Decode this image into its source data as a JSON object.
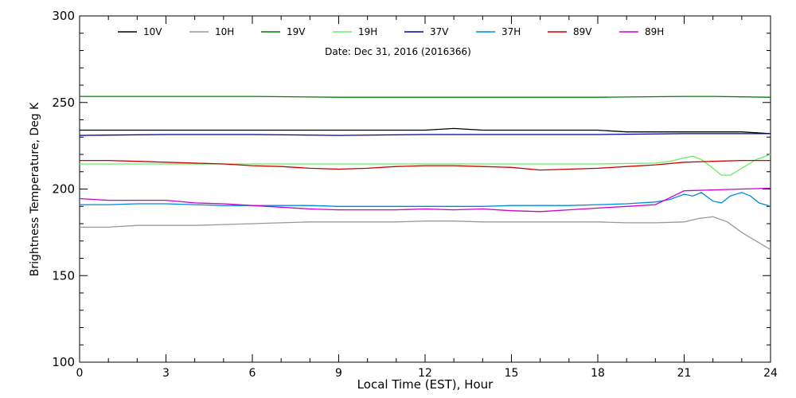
{
  "chart_data": {
    "type": "line",
    "title": "",
    "subtitle": "Date: Dec 31, 2016 (2016366)",
    "xlabel": "Local Time (EST), Hour",
    "ylabel": "Brightness Temperature, Deg K",
    "xlim": [
      0,
      24
    ],
    "ylim": [
      100,
      300
    ],
    "xticks": [
      0,
      3,
      6,
      9,
      12,
      15,
      18,
      21,
      24
    ],
    "yticks": [
      100,
      150,
      200,
      250,
      300
    ],
    "grid": false,
    "legend_position": "top",
    "series": [
      {
        "name": "10V",
        "color": "#000000",
        "x": [
          0,
          1,
          2,
          3,
          4,
          5,
          6,
          7,
          8,
          9,
          10,
          11,
          12,
          13,
          14,
          15,
          16,
          17,
          18,
          19,
          20,
          21,
          22,
          23,
          24
        ],
        "y": [
          234,
          234,
          234,
          234,
          234,
          234,
          234,
          234,
          234,
          234,
          234,
          234,
          234,
          235,
          234,
          234,
          234,
          234,
          234,
          233,
          233,
          233,
          233,
          233,
          232
        ]
      },
      {
        "name": "10H",
        "color": "#999999",
        "x": [
          0,
          1,
          2,
          3,
          4,
          5,
          6,
          7,
          8,
          9,
          10,
          11,
          12,
          13,
          14,
          15,
          16,
          17,
          18,
          19,
          20,
          21,
          21.5,
          22,
          22.5,
          23,
          23.5,
          24
        ],
        "y": [
          178,
          178,
          179,
          179,
          179,
          179.5,
          180,
          180.5,
          181,
          181,
          181,
          181,
          181.5,
          181.5,
          181,
          181,
          181,
          181,
          181,
          180.5,
          180.5,
          181,
          183,
          184,
          181,
          175,
          170,
          165
        ]
      },
      {
        "name": "19V",
        "color": "#008000",
        "x": [
          0,
          3,
          6,
          9,
          12,
          15,
          18,
          21,
          22,
          24
        ],
        "y": [
          253.5,
          253.5,
          253.5,
          253,
          253,
          253,
          253,
          253.5,
          253.5,
          253
        ]
      },
      {
        "name": "19H",
        "color": "#66ee66",
        "x": [
          0,
          3,
          6,
          9,
          12,
          15,
          18,
          20,
          20.5,
          21,
          21.3,
          21.6,
          22,
          22.3,
          22.6,
          23,
          23.5,
          24
        ],
        "y": [
          214.5,
          214.5,
          214.5,
          214.5,
          214.5,
          214.5,
          214.5,
          215,
          216,
          218,
          219,
          217,
          212,
          208,
          208,
          212,
          217,
          220
        ]
      },
      {
        "name": "37V",
        "color": "#0000aa",
        "x": [
          0,
          3,
          6,
          9,
          12,
          15,
          18,
          21,
          24
        ],
        "y": [
          231,
          231.5,
          231.5,
          231,
          231.5,
          231.5,
          231.5,
          232,
          232
        ]
      },
      {
        "name": "37H",
        "color": "#0088dd",
        "x": [
          0,
          1,
          2,
          3,
          4,
          5,
          6,
          7,
          8,
          9,
          10,
          11,
          12,
          13,
          14,
          15,
          16,
          17,
          18,
          19,
          20,
          20.5,
          21,
          21.3,
          21.6,
          22,
          22.3,
          22.6,
          23,
          23.3,
          23.6,
          24
        ],
        "y": [
          191,
          191,
          191.5,
          191.5,
          191,
          190.5,
          190.5,
          190.5,
          190.5,
          190,
          190,
          190,
          190,
          190,
          190,
          190.5,
          190.5,
          190.5,
          191,
          191.5,
          192.5,
          194,
          197,
          196,
          198,
          193,
          192,
          196,
          198,
          196,
          192,
          190
        ]
      },
      {
        "name": "89V",
        "color": "#cc0000",
        "x": [
          0,
          1,
          2,
          3,
          4,
          5,
          6,
          7,
          8,
          9,
          10,
          11,
          12,
          13,
          14,
          15,
          16,
          17,
          18,
          19,
          20,
          21,
          22,
          23,
          24
        ],
        "y": [
          216.5,
          216.5,
          216,
          215.5,
          215,
          214.5,
          213.5,
          213,
          212,
          211.5,
          212,
          213,
          213.5,
          213.5,
          213,
          212.5,
          211,
          211.5,
          212,
          213,
          214,
          215.5,
          216,
          216.5,
          216.5
        ]
      },
      {
        "name": "89H",
        "color": "#cc00cc",
        "x": [
          0,
          1,
          2,
          3,
          4,
          5,
          6,
          7,
          8,
          9,
          10,
          11,
          12,
          13,
          14,
          15,
          16,
          17,
          18,
          19,
          20,
          20.5,
          21,
          22,
          23,
          24
        ],
        "y": [
          194.5,
          193.5,
          193.5,
          193.5,
          192,
          191.5,
          190.5,
          189.5,
          188.5,
          188,
          188,
          188,
          188.5,
          188,
          188.5,
          187.5,
          187,
          188,
          189,
          190,
          191,
          195,
          199,
          199.5,
          200,
          200.5
        ]
      }
    ]
  }
}
